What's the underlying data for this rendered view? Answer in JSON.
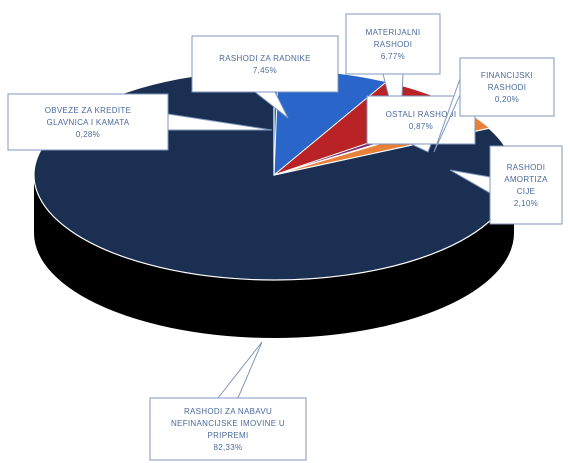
{
  "chart_data": {
    "type": "pie",
    "title": "",
    "style": "3d-exploded-first-slice",
    "slices": [
      {
        "label": "OBVEZE ZA KREDITE GLAVNICA I KAMATA",
        "lines": [
          "OBVEZE ZA KREDITE",
          "GLAVNICA I KAMATA"
        ],
        "value": 0.28,
        "value_text": "0,28%",
        "color": "#2e5fb0"
      },
      {
        "label": "RASHODI ZA RADNIKE",
        "lines": [
          "RASHODI ZA RADNIKE"
        ],
        "value": 7.45,
        "value_text": "7,45%",
        "color": "#2a66c9"
      },
      {
        "label": "MATERIJALNI RASHODI",
        "lines": [
          "MATERIJALNI",
          "RASHODI"
        ],
        "value": 6.77,
        "value_text": "6,77%",
        "color": "#b92326"
      },
      {
        "label": "OSTALI RASHODI",
        "lines": [
          "OSTALI RASHODI"
        ],
        "value": 0.87,
        "value_text": "0,87%",
        "color": "#7c2f6e"
      },
      {
        "label": "FINANCIJSKI RASHODI",
        "lines": [
          "FINANCIJSKI",
          "RASHODI"
        ],
        "value": 0.2,
        "value_text": "0,20%",
        "color": "#3f9a3f"
      },
      {
        "label": "RASHODI AMORTIZACIJE",
        "lines": [
          "RASHODI",
          "AMORTIZA",
          "CIJE"
        ],
        "value": 2.1,
        "value_text": "2,10%",
        "color": "#e8803a"
      },
      {
        "label": "RASHODI ZA NABAVU NEFINANCIJSKE IMOVINE U PRIPREMI",
        "lines": [
          "RASHODI ZA NABAVU",
          "NEFINANCIJSKE IMOVINE U",
          "PRIPREMI"
        ],
        "value": 82.33,
        "value_text": "82,33%",
        "color": "#1a2f52"
      }
    ],
    "colors": {
      "label_text": "#4a6a9c",
      "callout_border": "#7f98bf"
    }
  }
}
